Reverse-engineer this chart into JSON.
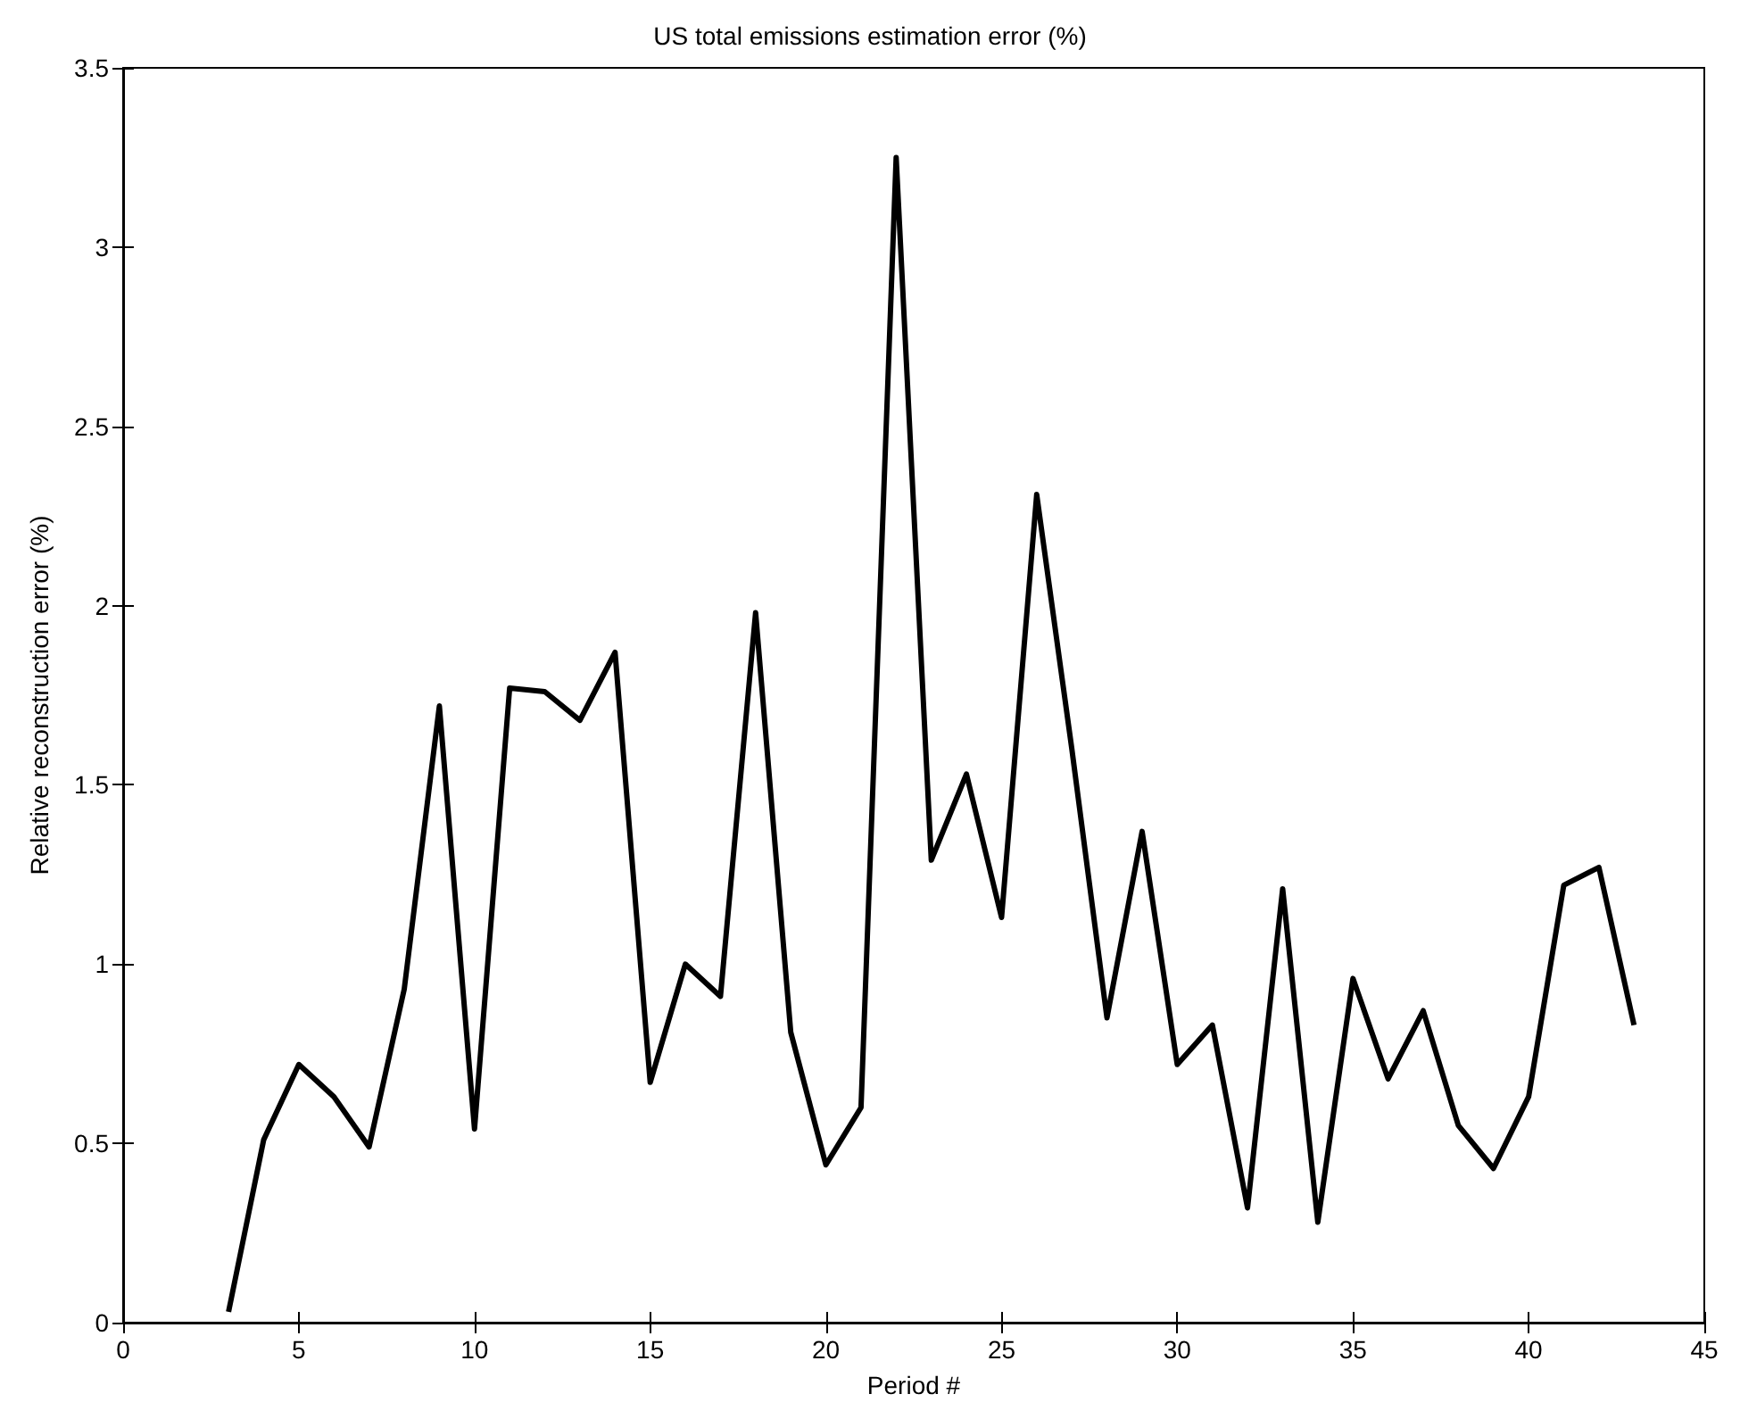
{
  "chart_data": {
    "type": "line",
    "title": "US total emissions estimation error (%)",
    "xlabel": "Period #",
    "ylabel": "Relative reconstruction error (%)",
    "x": [
      3,
      4,
      5,
      6,
      7,
      8,
      9,
      10,
      11,
      12,
      13,
      14,
      15,
      16,
      17,
      18,
      19,
      20,
      21,
      22,
      23,
      24,
      25,
      26,
      27,
      28,
      29,
      30,
      31,
      32,
      33,
      34,
      35,
      36,
      37,
      38,
      39,
      40,
      41,
      42,
      43
    ],
    "series": [
      {
        "color": "#000000",
        "values": [
          0.03,
          0.51,
          0.72,
          0.63,
          0.49,
          0.93,
          1.72,
          0.54,
          1.77,
          1.76,
          1.68,
          1.87,
          0.67,
          1.0,
          0.91,
          1.98,
          0.81,
          0.44,
          0.6,
          3.25,
          1.29,
          1.53,
          1.13,
          2.31,
          1.6,
          0.85,
          1.37,
          0.72,
          0.83,
          0.32,
          1.21,
          0.28,
          0.96,
          0.68,
          0.87,
          0.55,
          0.43,
          0.63,
          1.22,
          1.27,
          0.83
        ]
      }
    ],
    "xlim": [
      0,
      45
    ],
    "xticks": [
      0,
      5,
      10,
      15,
      20,
      25,
      30,
      35,
      40,
      45
    ],
    "ylim": [
      0,
      3.5
    ],
    "yticks": [
      0,
      0.5,
      1,
      1.5,
      2,
      2.5,
      3,
      3.5
    ],
    "marker": "none",
    "line_style": "solid"
  }
}
